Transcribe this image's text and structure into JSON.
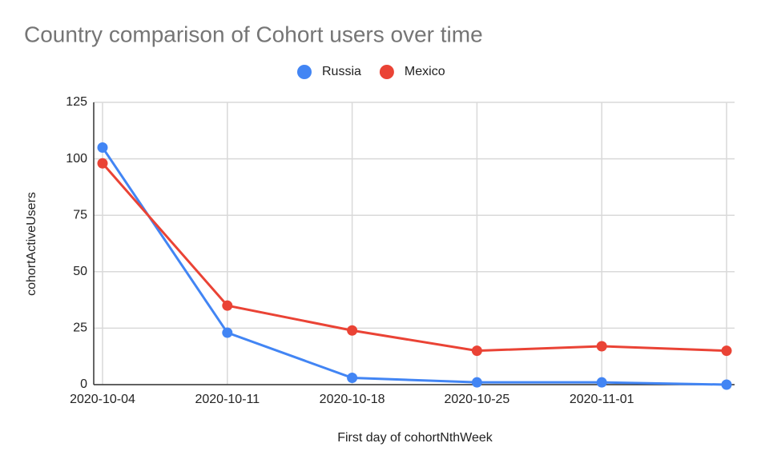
{
  "chart_data": {
    "type": "line",
    "title": "Country comparison of Cohort users over time",
    "x_label": "First day of cohortNthWeek",
    "y_label": "cohortActiveUsers",
    "categories": [
      "2020-10-04",
      "2020-10-11",
      "2020-10-18",
      "2020-10-25",
      "2020-11-01",
      null
    ],
    "series": [
      {
        "name": "Russia",
        "color": "#4285f4",
        "values": [
          105,
          23,
          3,
          1,
          1,
          0
        ]
      },
      {
        "name": "Mexico",
        "color": "#ea4335",
        "values": [
          98,
          35,
          24,
          15,
          17,
          15
        ]
      }
    ],
    "ylim": [
      0,
      125
    ],
    "yticks": [
      0,
      25,
      50,
      75,
      100,
      125
    ],
    "grid": true,
    "legend": "top"
  }
}
